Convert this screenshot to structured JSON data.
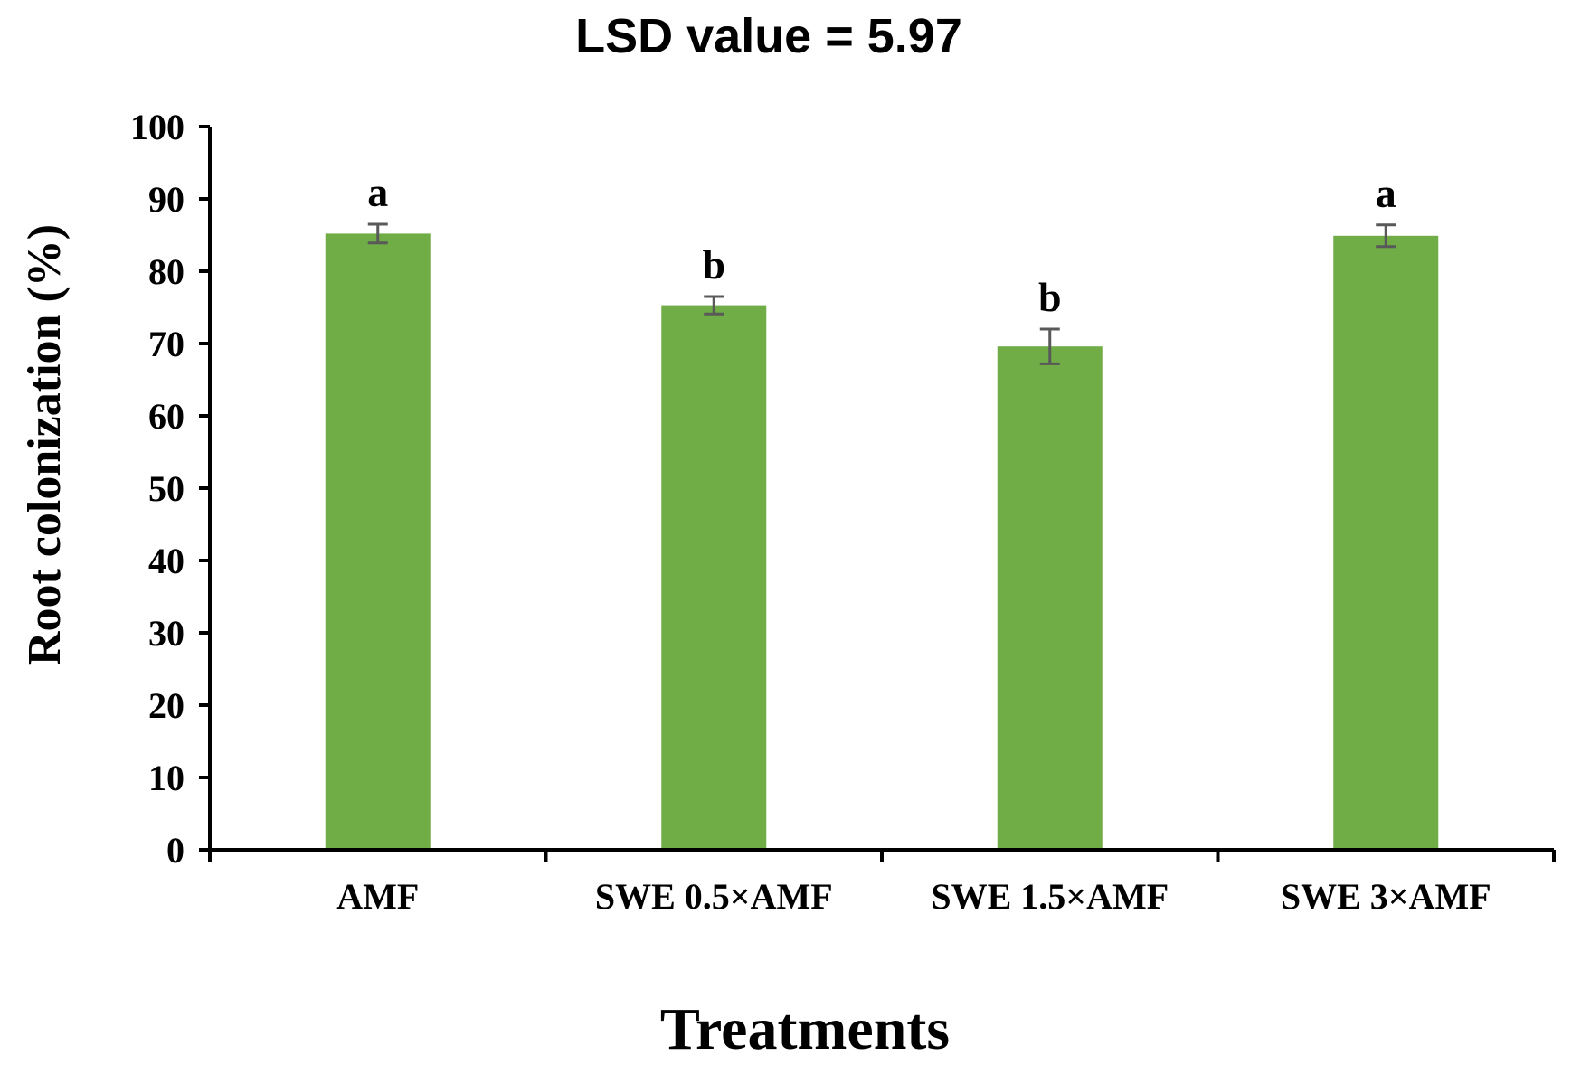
{
  "chart_data": {
    "type": "bar",
    "title": "LSD value = 5.97",
    "xlabel": "Treatments",
    "ylabel": "Root colonization (%)",
    "ylim": [
      0,
      100
    ],
    "yticks": [
      0,
      10,
      20,
      30,
      40,
      50,
      60,
      70,
      80,
      90,
      100
    ],
    "categories": [
      "AMF",
      "SWE 0.5×AMF",
      "SWE 1.5×AMF",
      "SWE 3×AMF"
    ],
    "values": [
      85.2,
      75.3,
      69.6,
      84.9
    ],
    "errors": [
      1.3,
      1.2,
      2.4,
      1.5
    ],
    "significance_letters": [
      "a",
      "b",
      "b",
      "a"
    ],
    "bar_color": "#70ad47",
    "error_color": "#595959",
    "axis_color": "#000000",
    "grid": false,
    "legend": "none"
  }
}
